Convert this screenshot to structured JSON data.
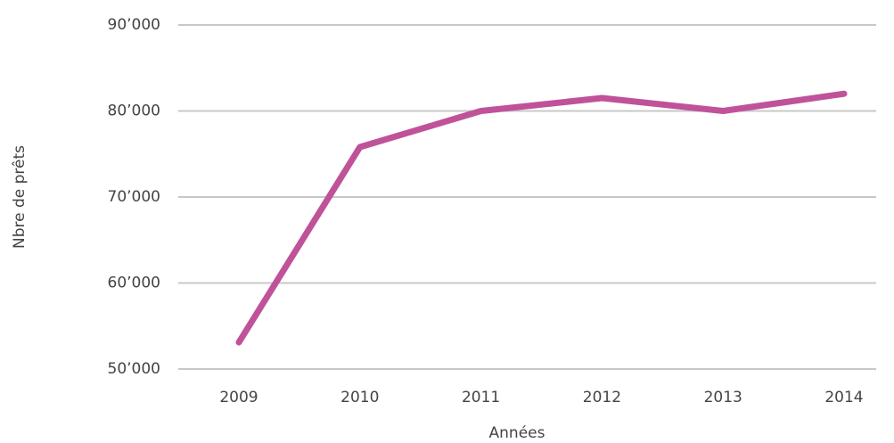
{
  "chart_data": {
    "type": "line",
    "x_label": "Années",
    "y_label": "Nbre de prêts",
    "categories": [
      "2009",
      "2010",
      "2011",
      "2012",
      "2013",
      "2014"
    ],
    "series": [
      {
        "name": "Nbre de prêts",
        "color": "#c0529a",
        "values": [
          53100,
          75800,
          80000,
          81500,
          80000,
          82000
        ]
      }
    ],
    "ylim": [
      50000,
      90000
    ],
    "yticks": [
      {
        "value": 50000,
        "label": "50’000"
      },
      {
        "value": 60000,
        "label": "60’000"
      },
      {
        "value": 70000,
        "label": "70’000"
      },
      {
        "value": 80000,
        "label": "80’000"
      },
      {
        "value": 90000,
        "label": "90’000"
      }
    ],
    "grid": true
  }
}
